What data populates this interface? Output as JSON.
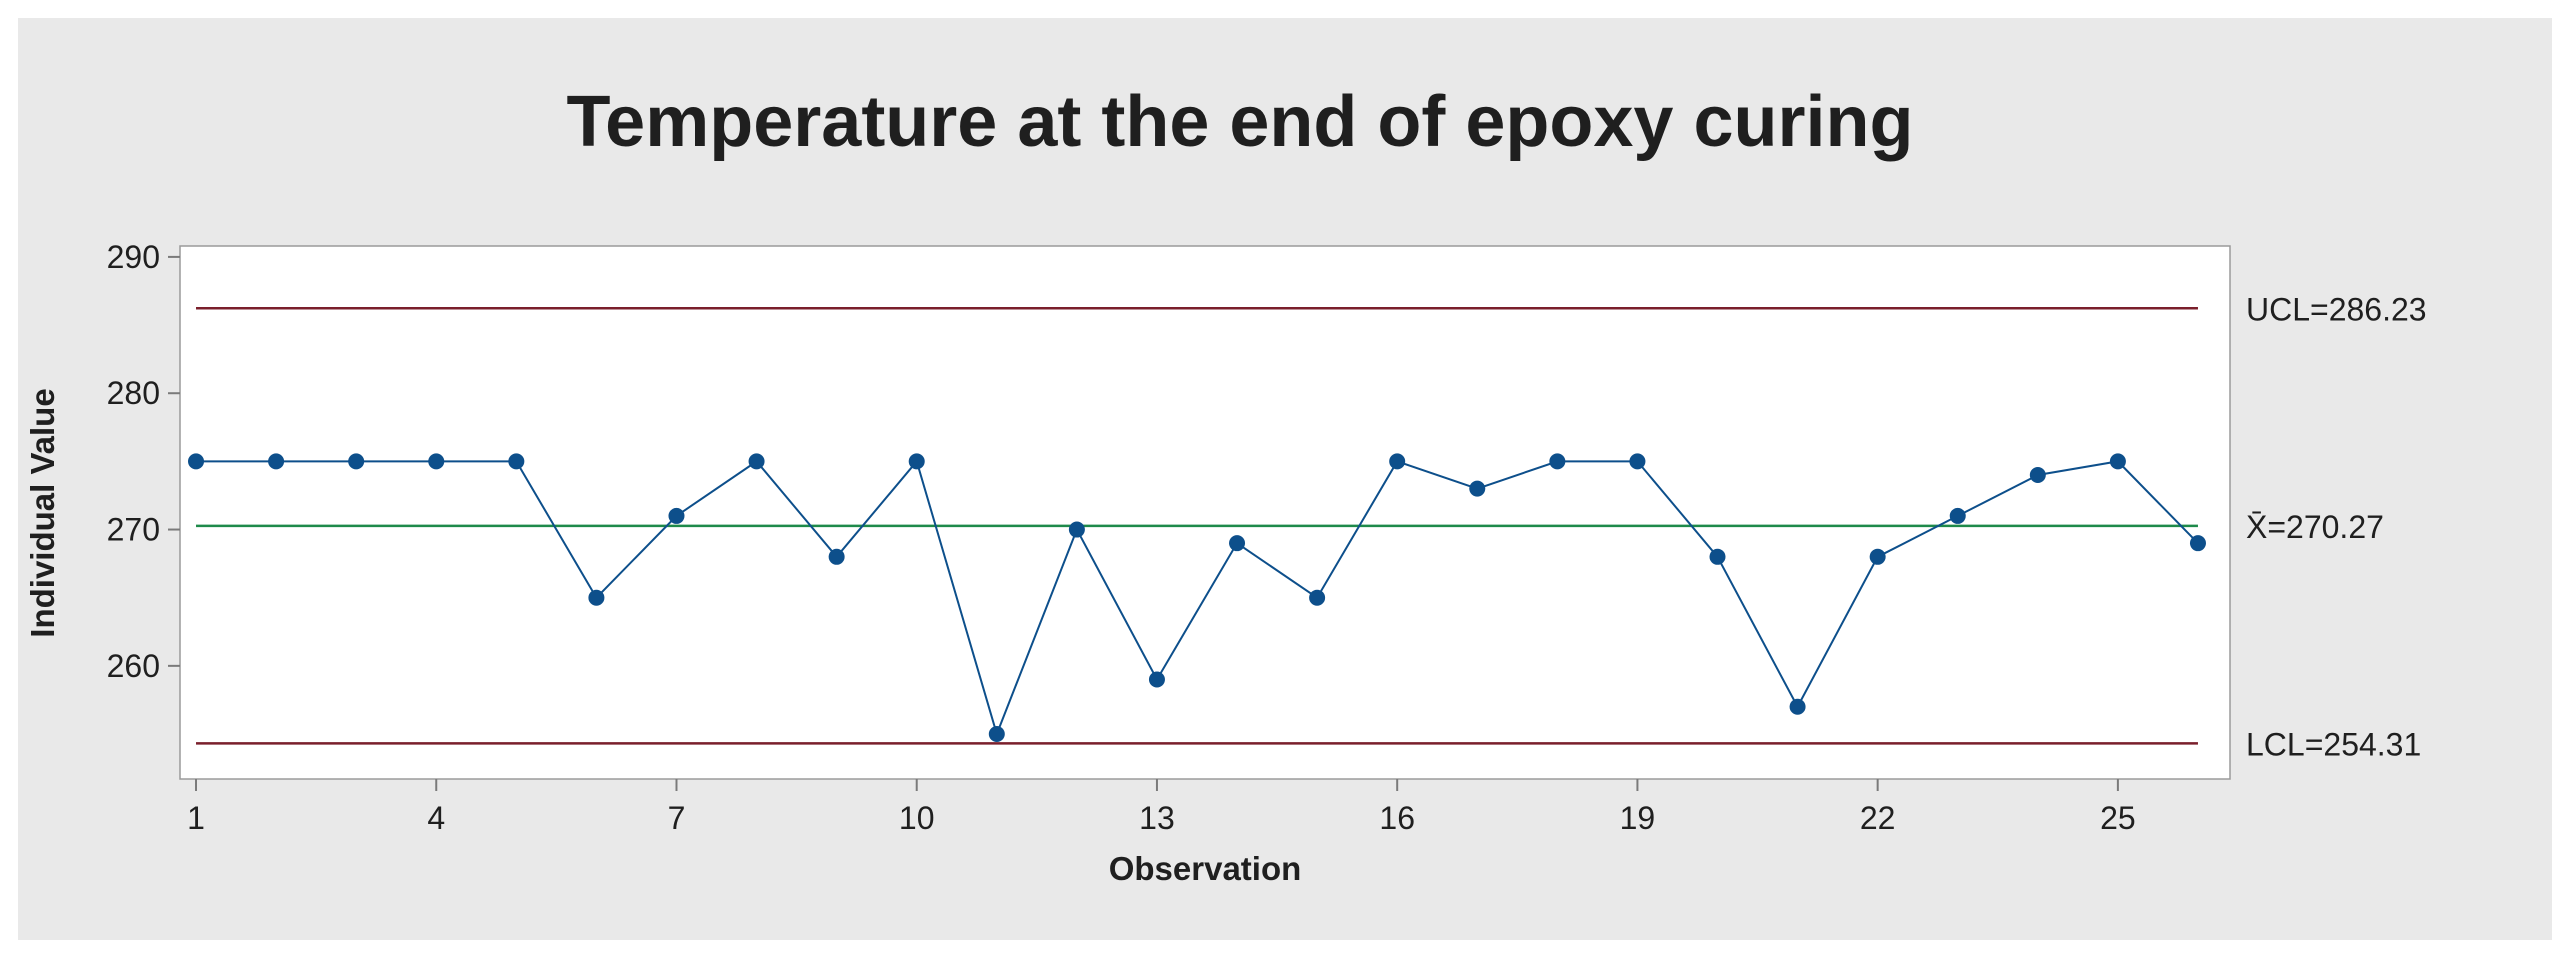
{
  "chart_data": {
    "type": "line",
    "title": "Temperature at the end of epoxy curing",
    "xlabel": "Observation",
    "ylabel": "Individual Value",
    "xlim": [
      0.8,
      26.4
    ],
    "ylim": [
      251.7,
      290.8
    ],
    "x_ticks": [
      1,
      4,
      7,
      10,
      13,
      16,
      19,
      22,
      25
    ],
    "y_ticks": [
      260,
      270,
      280,
      290
    ],
    "x": [
      1,
      2,
      3,
      4,
      5,
      6,
      7,
      8,
      9,
      10,
      11,
      12,
      13,
      14,
      15,
      16,
      17,
      18,
      19,
      20,
      21,
      22,
      23,
      24,
      25,
      26
    ],
    "series": [
      {
        "values": [
          275,
          275,
          275,
          275,
          275,
          265,
          271,
          275,
          268,
          275,
          255,
          270,
          259,
          269,
          265,
          275,
          273,
          275,
          275,
          268,
          257,
          268,
          271,
          274,
          275,
          269
        ],
        "color": "#0d4f8b"
      }
    ],
    "reference_lines": [
      {
        "value": 286.23,
        "label": "UCL=286.23",
        "color": "#7a1f2b"
      },
      {
        "value": 270.27,
        "label": "X̄=270.27",
        "color": "#1e8a4a"
      },
      {
        "value": 254.31,
        "label": "LCL=254.31",
        "color": "#7a1f2b"
      }
    ],
    "grid": false,
    "legend": "none"
  }
}
